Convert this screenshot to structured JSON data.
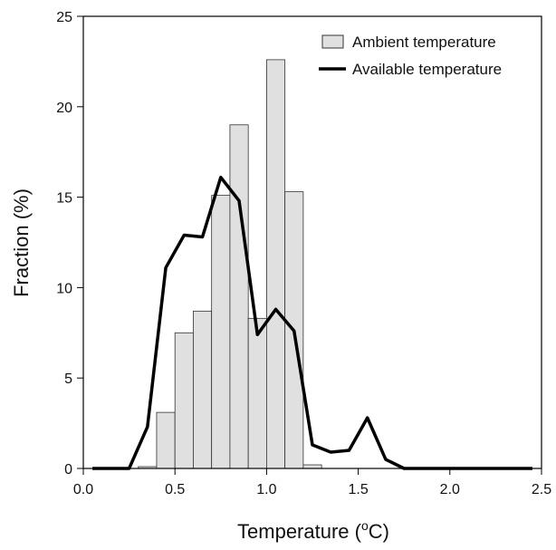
{
  "chart_data": {
    "type": "bar",
    "xlabel": "Temperature (",
    "xlabel_sup": "o",
    "xlabel_tail": "C)",
    "ylabel": "Fraction (%)",
    "xlim": [
      0,
      2.5
    ],
    "ylim": [
      0,
      25
    ],
    "xticks": [
      "0.0",
      "0.5",
      "1.0",
      "1.5",
      "2.0",
      "2.5"
    ],
    "xtick_values": [
      0,
      0.5,
      1.0,
      1.5,
      2.0,
      2.5
    ],
    "yticks": [
      "0",
      "5",
      "10",
      "15",
      "20",
      "25"
    ],
    "ytick_values": [
      0,
      5,
      10,
      15,
      20,
      25
    ],
    "grid": false,
    "legend_position": "top-right",
    "bar_width": 0.1,
    "colors": {
      "bar_fill": "#e0e0e0",
      "bar_stroke": "#333333",
      "line": "#000000"
    },
    "series": [
      {
        "name": "Ambient temperature",
        "type": "bar",
        "x": [
          0.35,
          0.45,
          0.55,
          0.65,
          0.75,
          0.85,
          0.95,
          1.05,
          1.15,
          1.25
        ],
        "values": [
          0.1,
          3.1,
          7.5,
          8.7,
          15.1,
          19.0,
          8.3,
          22.6,
          15.3,
          0.2
        ]
      },
      {
        "name": "Available temperature",
        "type": "line",
        "x": [
          0.05,
          0.15,
          0.25,
          0.35,
          0.45,
          0.55,
          0.65,
          0.75,
          0.85,
          0.95,
          1.05,
          1.15,
          1.25,
          1.35,
          1.45,
          1.55,
          1.65,
          1.75,
          1.85,
          1.95,
          2.05,
          2.15,
          2.25,
          2.35,
          2.45
        ],
        "values": [
          0,
          0,
          0,
          2.3,
          11.1,
          12.9,
          12.8,
          16.1,
          14.8,
          7.4,
          8.8,
          7.6,
          1.3,
          0.9,
          1.0,
          2.8,
          0.5,
          0,
          0,
          0,
          0,
          0,
          0,
          0,
          0
        ]
      }
    ]
  }
}
